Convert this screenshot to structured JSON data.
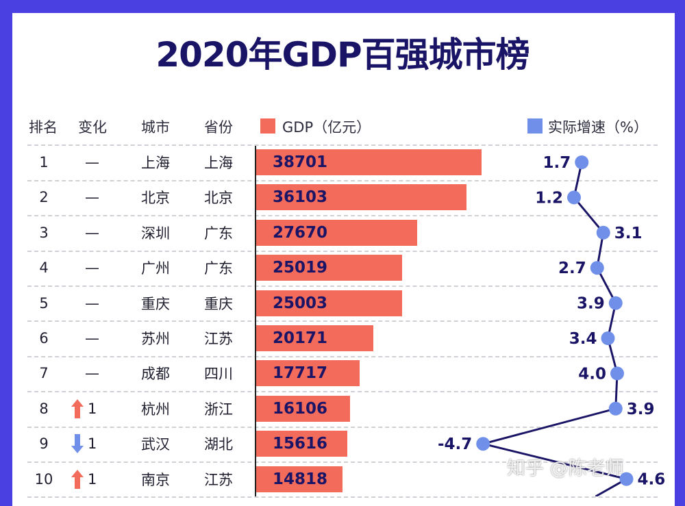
{
  "title": "2020年GDP百强城市榜",
  "headers": {
    "rank": "排名",
    "change": "变化",
    "city": "城市",
    "province": "省份",
    "gdp": "GDP（亿元）",
    "growth": "实际增速（%）"
  },
  "colors": {
    "border": "#4a3fe0",
    "gdp_bar": "#f26b5b",
    "growth_dot": "#6f8fe8",
    "line": "#1a1466",
    "up_arrow": "#f26b5b",
    "down_arrow": "#6f8fe8"
  },
  "watermark": "知乎 @陈老师",
  "rows": [
    {
      "rank": "1",
      "change": "—",
      "dir": "none",
      "city": "上海",
      "province": "上海",
      "gdp": "38701",
      "growth": "1.7"
    },
    {
      "rank": "2",
      "change": "—",
      "dir": "none",
      "city": "北京",
      "province": "北京",
      "gdp": "36103",
      "growth": "1.2"
    },
    {
      "rank": "3",
      "change": "—",
      "dir": "none",
      "city": "深圳",
      "province": "广东",
      "gdp": "27670",
      "growth": "3.1"
    },
    {
      "rank": "4",
      "change": "—",
      "dir": "none",
      "city": "广州",
      "province": "广东",
      "gdp": "25019",
      "growth": "2.7"
    },
    {
      "rank": "5",
      "change": "—",
      "dir": "none",
      "city": "重庆",
      "province": "重庆",
      "gdp": "25003",
      "growth": "3.9"
    },
    {
      "rank": "6",
      "change": "—",
      "dir": "none",
      "city": "苏州",
      "province": "江苏",
      "gdp": "20171",
      "growth": "3.4"
    },
    {
      "rank": "7",
      "change": "—",
      "dir": "none",
      "city": "成都",
      "province": "四川",
      "gdp": "17717",
      "growth": "4.0"
    },
    {
      "rank": "8",
      "change": "1",
      "dir": "up",
      "city": "杭州",
      "province": "浙江",
      "gdp": "16106",
      "growth": "3.9"
    },
    {
      "rank": "9",
      "change": "1",
      "dir": "down",
      "city": "武汉",
      "province": "湖北",
      "gdp": "15616",
      "growth": "-4.7"
    },
    {
      "rank": "10",
      "change": "1",
      "dir": "up",
      "city": "南京",
      "province": "江苏",
      "gdp": "14818",
      "growth": "4.6"
    }
  ],
  "chart_data": {
    "type": "bar",
    "title": "2020年GDP百强城市榜",
    "categories": [
      "上海",
      "北京",
      "深圳",
      "广州",
      "重庆",
      "苏州",
      "成都",
      "杭州",
      "武汉",
      "南京"
    ],
    "series": [
      {
        "name": "GDP（亿元）",
        "type": "bar",
        "values": [
          38701,
          36103,
          27670,
          25019,
          25003,
          20171,
          17717,
          16106,
          15616,
          14818
        ]
      },
      {
        "name": "实际增速（%）",
        "type": "line",
        "values": [
          1.7,
          1.2,
          3.1,
          2.7,
          3.9,
          3.4,
          4.0,
          3.9,
          -4.7,
          4.6
        ]
      }
    ],
    "grid": "horizontal dashed",
    "legend": "top"
  }
}
